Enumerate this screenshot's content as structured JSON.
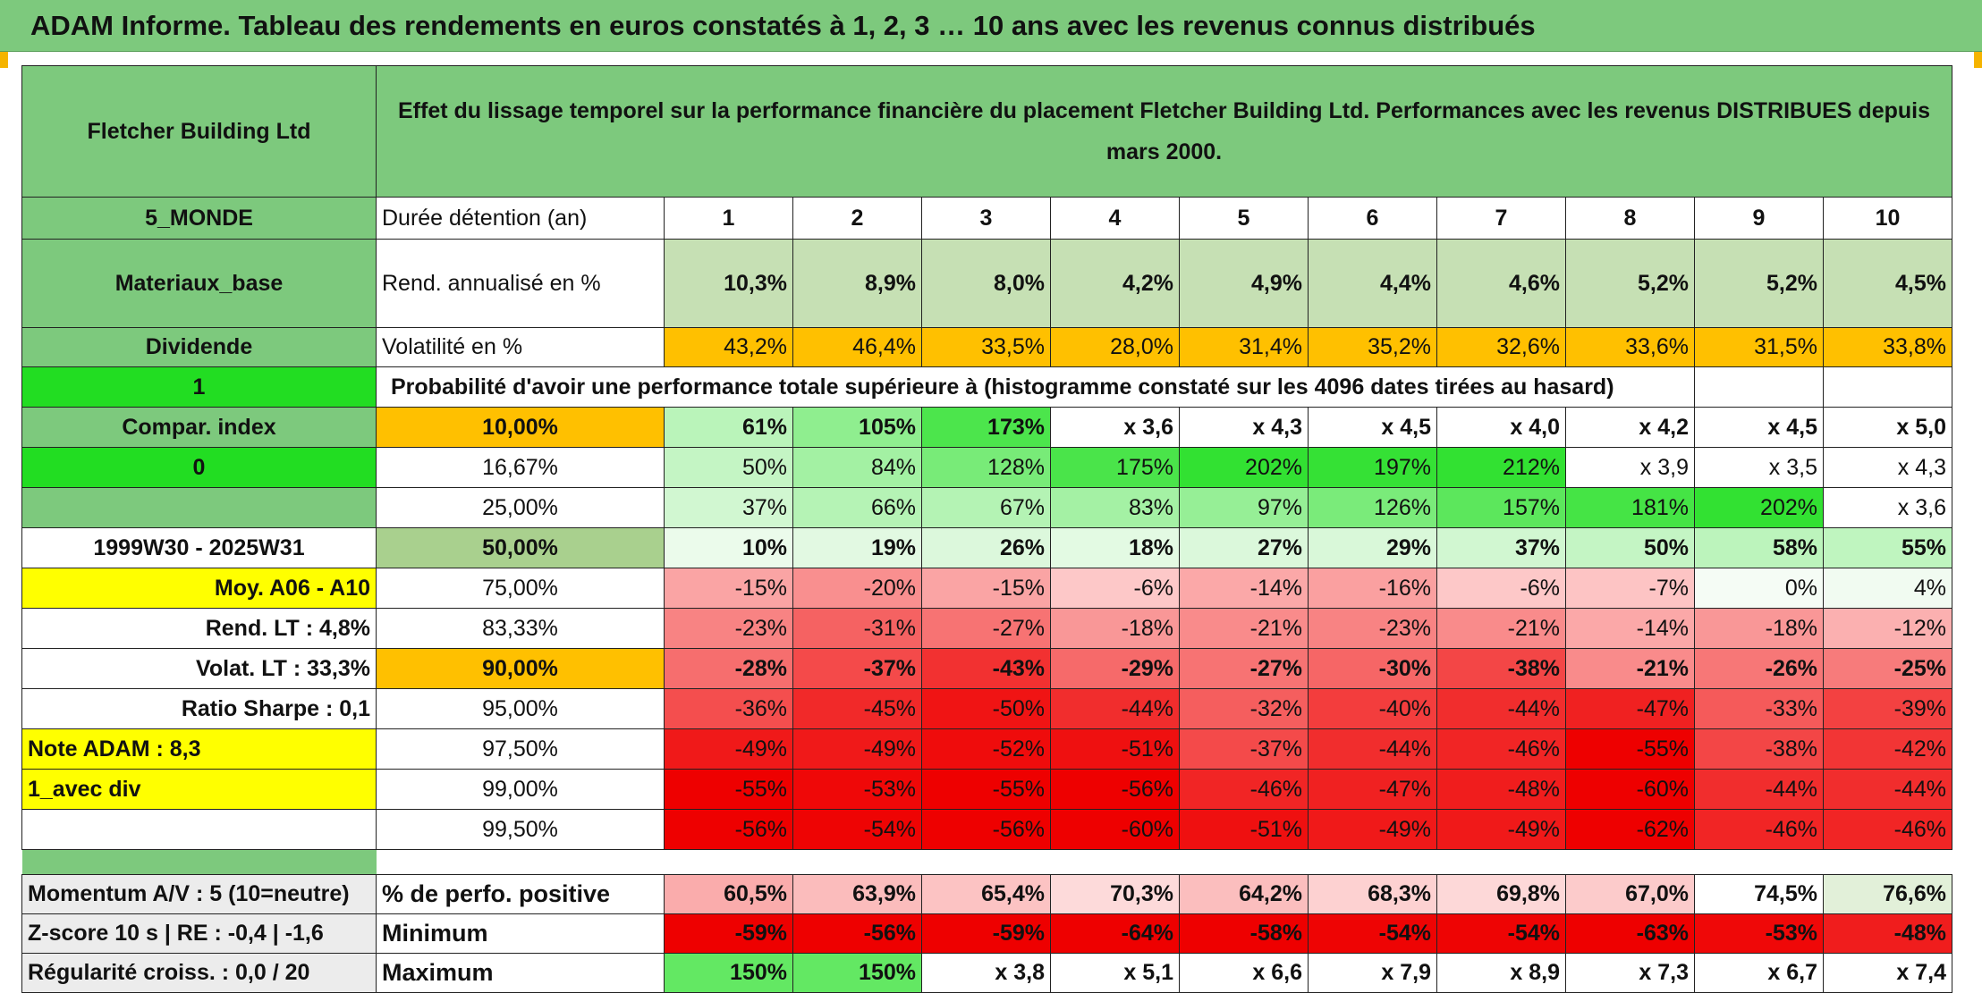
{
  "title": "ADAM Informe. Tableau des rendements en euros constatés à 1, 2, 3 … 10 ans avec les revenus connus distribués",
  "header": {
    "name": "Fletcher Building Ltd",
    "description": "Effet du lissage temporel sur la performance financière du placement Fletcher Building Ltd. Performances avec les revenus DISTRIBUES depuis mars 2000."
  },
  "side": {
    "region": "5_MONDE",
    "sector": "Materiaux_base",
    "dividend": "Dividende",
    "flag1": "1",
    "compar": "Compar. index",
    "flag0": "0",
    "period": "1999W30 - 2025W31",
    "moy": "Moy. A06 - A10",
    "rend_lt": "Rend. LT :   4,8%",
    "volat_lt": "Volat. LT :   33,3%",
    "sharpe": "Ratio Sharpe :   0,1",
    "note": "Note ADAM : 8,3",
    "avec_div": "1_avec div"
  },
  "row_labels": {
    "duree": "Durée détention (an)",
    "rend": "Rend. annualisé en %",
    "vol": "Volatilité en %",
    "prob": "Probabilité d'avoir une performance totale supérieure à (histogramme constaté sur les 4096 dates tirées au hasard)"
  },
  "years": [
    "1",
    "2",
    "3",
    "4",
    "5",
    "6",
    "7",
    "8",
    "9",
    "10"
  ],
  "rend": [
    "10,3%",
    "8,9%",
    "8,0%",
    "4,2%",
    "4,9%",
    "4,4%",
    "4,6%",
    "5,2%",
    "5,2%",
    "4,5%"
  ],
  "vol": [
    "43,2%",
    "46,4%",
    "33,5%",
    "28,0%",
    "31,4%",
    "35,2%",
    "32,6%",
    "33,6%",
    "31,5%",
    "33,8%"
  ],
  "percentiles": [
    {
      "label": "10,00%",
      "values": [
        "61%",
        "105%",
        "173%",
        "x 3,6",
        "x 4,3",
        "x 4,5",
        "x 4,0",
        "x 4,2",
        "x 4,5",
        "x 5,0"
      ]
    },
    {
      "label": "16,67%",
      "values": [
        "50%",
        "84%",
        "128%",
        "175%",
        "202%",
        "197%",
        "212%",
        "x 3,9",
        "x 3,5",
        "x 4,3"
      ]
    },
    {
      "label": "25,00%",
      "values": [
        "37%",
        "66%",
        "67%",
        "83%",
        "97%",
        "126%",
        "157%",
        "181%",
        "202%",
        "x 3,6"
      ]
    },
    {
      "label": "50,00%",
      "values": [
        "10%",
        "19%",
        "26%",
        "18%",
        "27%",
        "29%",
        "37%",
        "50%",
        "58%",
        "55%"
      ]
    },
    {
      "label": "75,00%",
      "values": [
        "-15%",
        "-20%",
        "-15%",
        "-6%",
        "-14%",
        "-16%",
        "-6%",
        "-7%",
        "0%",
        "4%"
      ]
    },
    {
      "label": "83,33%",
      "values": [
        "-23%",
        "-31%",
        "-27%",
        "-18%",
        "-21%",
        "-23%",
        "-21%",
        "-14%",
        "-18%",
        "-12%"
      ]
    },
    {
      "label": "90,00%",
      "values": [
        "-28%",
        "-37%",
        "-43%",
        "-29%",
        "-27%",
        "-30%",
        "-38%",
        "-21%",
        "-26%",
        "-25%"
      ]
    },
    {
      "label": "95,00%",
      "values": [
        "-36%",
        "-45%",
        "-50%",
        "-44%",
        "-32%",
        "-40%",
        "-44%",
        "-47%",
        "-33%",
        "-39%"
      ]
    },
    {
      "label": "97,50%",
      "values": [
        "-49%",
        "-49%",
        "-52%",
        "-51%",
        "-37%",
        "-44%",
        "-46%",
        "-55%",
        "-38%",
        "-42%"
      ]
    },
    {
      "label": "99,00%",
      "values": [
        "-55%",
        "-53%",
        "-55%",
        "-56%",
        "-46%",
        "-47%",
        "-48%",
        "-60%",
        "-44%",
        "-44%"
      ]
    },
    {
      "label": "99,50%",
      "values": [
        "-56%",
        "-54%",
        "-56%",
        "-60%",
        "-51%",
        "-49%",
        "-49%",
        "-62%",
        "-46%",
        "-46%"
      ]
    }
  ],
  "bottom": {
    "momentum": "Momentum A/V : 5 (10=neutre)",
    "zscore": "Z-score 10 s | RE : -0,4 | -1,6",
    "regularite": "Régularité croiss. : 0,0 / 20",
    "pos_label": "% de perfo. positive",
    "min_label": "Minimum",
    "max_label": "Maximum",
    "pos": [
      "60,5%",
      "63,9%",
      "65,4%",
      "70,3%",
      "64,2%",
      "68,3%",
      "69,8%",
      "67,0%",
      "74,5%",
      "76,6%"
    ],
    "min": [
      "-59%",
      "-56%",
      "-59%",
      "-64%",
      "-58%",
      "-54%",
      "-54%",
      "-63%",
      "-53%",
      "-48%"
    ],
    "max": [
      "150%",
      "150%",
      "x 3,8",
      "x 5,1",
      "x 6,6",
      "x 7,9",
      "x 8,9",
      "x 7,3",
      "x 6,7",
      "x 7,4"
    ]
  },
  "colors": {
    "header_green": "#7dc97d",
    "light_green": "#c6e0b4",
    "orange": "#ffc000",
    "yellow": "#ffff00",
    "bright_green": "#22dd22",
    "pct_green": "#a9d08e",
    "red_text": "#d01818"
  }
}
